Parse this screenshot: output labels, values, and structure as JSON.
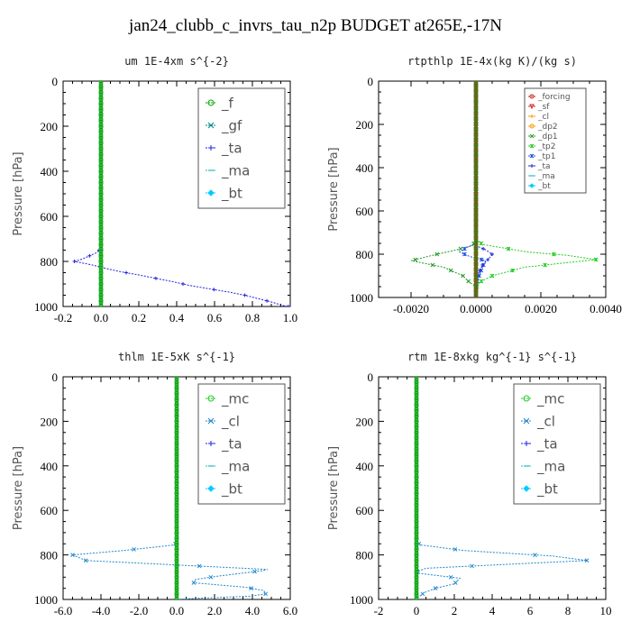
{
  "title": "jan24_clubb_c_invrs_tau_n2p  BUDGET at265E,-17N",
  "chart_data": [
    {
      "type": "line",
      "title": "um   1E-4xm s^{-2}",
      "xlabel": "",
      "ylabel": "Pressure [hPa]",
      "xlim": [
        -0.2,
        1.0
      ],
      "ylim": [
        1000,
        0
      ],
      "xticks": [
        "-0.2",
        "0.0",
        "0.2",
        "0.4",
        "0.6",
        "0.8",
        "1.0"
      ],
      "xtick_values": [
        -0.2,
        0.0,
        0.2,
        0.4,
        0.6,
        0.8,
        1.0
      ],
      "yticks": [
        "0",
        "200",
        "400",
        "600",
        "800",
        "1000"
      ],
      "ytick_values": [
        0,
        200,
        400,
        600,
        800,
        1000
      ],
      "legend": {
        "position": "top-right",
        "font": 15,
        "entries": [
          "_f",
          "_gf",
          "_ta",
          "_ma",
          "_bt"
        ]
      },
      "series": [
        {
          "name": "_f",
          "color": "#00aa00",
          "marker": "circle",
          "y": [
            0,
            1000
          ],
          "x": [
            0,
            0
          ]
        },
        {
          "name": "_gf",
          "color": "#008888",
          "marker": "cross",
          "y": [
            0,
            1000
          ],
          "x": [
            0,
            0
          ]
        },
        {
          "name": "_ta",
          "color": "#2222dd",
          "marker": "plus",
          "y": [
            0,
            700,
            740,
            760,
            775,
            790,
            800,
            815,
            830,
            845,
            860,
            875,
            890,
            905,
            920,
            935,
            950,
            965,
            980,
            995,
            1000
          ],
          "x": [
            0,
            0,
            0,
            -0.02,
            -0.06,
            -0.1,
            -0.14,
            -0.05,
            0.02,
            0.1,
            0.2,
            0.29,
            0.38,
            0.46,
            0.56,
            0.67,
            0.76,
            0.83,
            0.9,
            0.96,
            0.99
          ]
        },
        {
          "name": "_ma",
          "color": "#22bbbb",
          "marker": "dash",
          "y": [
            0,
            1000
          ],
          "x": [
            0,
            0
          ]
        },
        {
          "name": "_bt",
          "color": "#00ccff",
          "marker": "diamond",
          "y": [
            0,
            1000
          ],
          "x": [
            0,
            0
          ]
        }
      ],
      "highlight": {
        "name": "_gf",
        "color": "#33cc33",
        "y": [
          0,
          700,
          750,
          780,
          800,
          830,
          860,
          900,
          1000
        ],
        "x": [
          0,
          0,
          0,
          0,
          0,
          0,
          0,
          0,
          0
        ]
      }
    },
    {
      "type": "line",
      "title": "rtpthlp   1E-4x(kg K)/(kg s)",
      "xlabel": "",
      "ylabel": "Pressure [hPa]",
      "xlim": [
        -0.003,
        0.004
      ],
      "ylim": [
        1000,
        0
      ],
      "xticks": [
        "-0.0020",
        "0.0000",
        "0.0020",
        "0.0040"
      ],
      "xtick_values": [
        -0.002,
        0.0,
        0.002,
        0.004
      ],
      "yticks": [
        "0",
        "200",
        "400",
        "600",
        "800",
        "1000"
      ],
      "ytick_values": [
        0,
        200,
        400,
        600,
        800,
        1000
      ],
      "legend": {
        "position": "top-right",
        "font": 9,
        "entries": [
          "_forcing",
          "_sf",
          "_cl",
          "_dp2",
          "_dp1",
          "_tp2",
          "_tp1",
          "_ta",
          "_ma",
          "_bt"
        ]
      },
      "series": [
        {
          "name": "_forcing",
          "color": "#cc2222",
          "marker": "circle",
          "y": [
            0,
            1000
          ],
          "x": [
            0,
            0
          ]
        },
        {
          "name": "_sf",
          "color": "#cc2222",
          "marker": "triangle",
          "y": [
            0,
            1000
          ],
          "x": [
            0,
            0
          ]
        },
        {
          "name": "_cl",
          "color": "#ff9900",
          "marker": "plus",
          "y": [
            0,
            1000
          ],
          "x": [
            0,
            0
          ]
        },
        {
          "name": "_dp2",
          "color": "#ff9900",
          "marker": "circle",
          "y": [
            0,
            1000
          ],
          "x": [
            0,
            0
          ]
        },
        {
          "name": "_dp1",
          "color": "#229922",
          "marker": "cross",
          "y": [
            0,
            730,
            760,
            780,
            800,
            830,
            860,
            900,
            930,
            950,
            1000
          ],
          "x": [
            0,
            0,
            -0.0001,
            -0.0006,
            -0.0012,
            -0.002,
            -0.001,
            -0.0004,
            -0.0002,
            0,
            0
          ]
        },
        {
          "name": "_tp2",
          "color": "#22cc22",
          "marker": "star",
          "y": [
            0,
            730,
            755,
            770,
            790,
            805,
            825,
            860,
            900,
            930,
            960,
            1000
          ],
          "x": [
            0,
            0,
            0.0002,
            0.0008,
            0.0016,
            0.0028,
            0.0037,
            0.0015,
            0.0005,
            0.0001,
            0,
            0
          ]
        },
        {
          "name": "_tp1",
          "color": "#2255dd",
          "marker": "star",
          "y": [
            0,
            750,
            770,
            790,
            810,
            830,
            860,
            900,
            940,
            1000
          ],
          "x": [
            0,
            0,
            -0.0003,
            -0.0005,
            -0.0002,
            0.0003,
            0.0002,
            0.0001,
            0,
            0
          ]
        },
        {
          "name": "_ta",
          "color": "#2222dd",
          "marker": "plus",
          "y": [
            0,
            760,
            780,
            800,
            820,
            850,
            880,
            920,
            1000
          ],
          "x": [
            0,
            0,
            0.0003,
            0.0005,
            0.0004,
            0.0002,
            0.0001,
            0,
            0
          ]
        },
        {
          "name": "_ma",
          "color": "#22bbbb",
          "marker": "dash",
          "y": [
            0,
            1000
          ],
          "x": [
            0,
            0
          ]
        },
        {
          "name": "_bt",
          "color": "#00ccff",
          "marker": "diamond",
          "y": [
            0,
            1000
          ],
          "x": [
            0,
            0
          ]
        }
      ],
      "highlight": {
        "name": "_forcing",
        "color": "#dd2222",
        "y": [
          0,
          1000
        ],
        "x": [
          0,
          0
        ]
      }
    },
    {
      "type": "line",
      "title": "thlm   1E-5xK s^{-1}",
      "xlabel": "",
      "ylabel": "Pressure [hPa]",
      "xlim": [
        -6.0,
        6.0
      ],
      "ylim": [
        1000,
        0
      ],
      "xticks": [
        "-6.0",
        "-4.0",
        "-2.0",
        "0.0",
        "2.0",
        "4.0",
        "6.0"
      ],
      "xtick_values": [
        -6,
        -4,
        -2,
        0,
        2,
        4,
        6
      ],
      "yticks": [
        "0",
        "200",
        "400",
        "600",
        "800",
        "1000"
      ],
      "ytick_values": [
        0,
        200,
        400,
        600,
        800,
        1000
      ],
      "legend": {
        "position": "top-right",
        "font": 15,
        "entries": [
          "_mc",
          "_cl",
          "_ta",
          "_ma",
          "_bt"
        ]
      },
      "series": [
        {
          "name": "_mc",
          "color": "#22cc22",
          "marker": "circle",
          "y": [
            0,
            1000
          ],
          "x": [
            0,
            0
          ]
        },
        {
          "name": "_cl",
          "color": "#2288cc",
          "marker": "cross",
          "y": [
            0,
            740,
            755,
            780,
            800,
            825,
            865,
            870,
            895,
            910,
            925,
            945,
            960,
            975,
            985,
            995,
            1000
          ],
          "x": [
            0,
            0,
            -0.1,
            -2.8,
            -5.5,
            -4.8,
            4.8,
            4.6,
            2.2,
            1.0,
            0.9,
            3.6,
            4.6,
            4.7,
            3.9,
            1.0,
            0.0
          ]
        },
        {
          "name": "_ta",
          "color": "#2222dd",
          "marker": "plus",
          "y": [
            0,
            1000
          ],
          "x": [
            0,
            0
          ]
        },
        {
          "name": "_ma",
          "color": "#22bbbb",
          "marker": "dash",
          "y": [
            0,
            1000
          ],
          "x": [
            0,
            0
          ]
        },
        {
          "name": "_bt",
          "color": "#00ccff",
          "marker": "diamond",
          "y": [
            0,
            1000
          ],
          "x": [
            0,
            0
          ]
        }
      ],
      "highlight": {
        "name": "_mc",
        "color": "#33cc33",
        "y": [
          0,
          1000
        ],
        "x": [
          0,
          0
        ]
      }
    },
    {
      "type": "line",
      "title": "rtm   1E-8xkg kg^{-1} s^{-1}",
      "xlabel": "",
      "ylabel": "Pressure [hPa]",
      "xlim": [
        -2,
        10
      ],
      "ylim": [
        1000,
        0
      ],
      "xticks": [
        "-2",
        "0",
        "2",
        "4",
        "6",
        "8",
        "10"
      ],
      "xtick_values": [
        -2,
        0,
        2,
        4,
        6,
        8,
        10
      ],
      "yticks": [
        "0",
        "200",
        "400",
        "600",
        "800",
        "1000"
      ],
      "ytick_values": [
        0,
        200,
        400,
        600,
        800,
        1000
      ],
      "legend": {
        "position": "top-right",
        "font": 15,
        "entries": [
          "_mc",
          "_cl",
          "_ta",
          "_ma",
          "_bt"
        ]
      },
      "series": [
        {
          "name": "_mc",
          "color": "#22cc22",
          "marker": "circle",
          "y": [
            0,
            1000
          ],
          "x": [
            0,
            0
          ]
        },
        {
          "name": "_cl",
          "color": "#2288cc",
          "marker": "cross",
          "y": [
            0,
            740,
            755,
            780,
            805,
            825,
            860,
            880,
            905,
            930,
            950,
            970,
            990,
            1000
          ],
          "x": [
            0,
            0,
            0.2,
            2.5,
            7.2,
            9.0,
            0.5,
            -0.1,
            2.3,
            2.0,
            1.0,
            0.4,
            0.1,
            0
          ]
        },
        {
          "name": "_ta",
          "color": "#2222dd",
          "marker": "plus",
          "y": [
            0,
            1000
          ],
          "x": [
            0,
            0
          ]
        },
        {
          "name": "_ma",
          "color": "#22bbbb",
          "marker": "dash",
          "y": [
            0,
            1000
          ],
          "x": [
            0,
            0
          ]
        },
        {
          "name": "_bt",
          "color": "#00ccff",
          "marker": "diamond",
          "y": [
            0,
            1000
          ],
          "x": [
            0,
            0
          ]
        }
      ],
      "highlight": {
        "name": "_mc",
        "color": "#33cc33",
        "y": [
          0,
          1000
        ],
        "x": [
          0,
          0
        ]
      }
    }
  ]
}
